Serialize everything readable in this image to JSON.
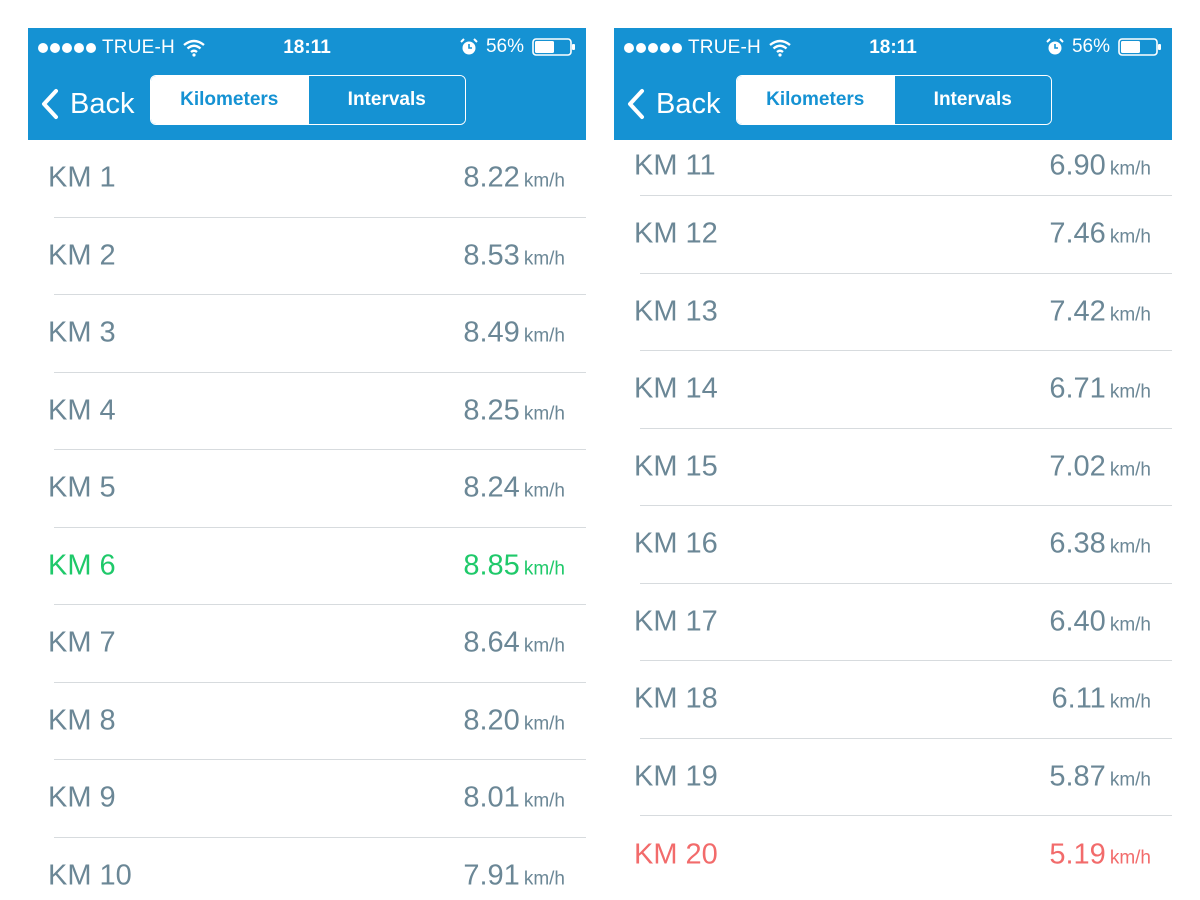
{
  "colors": {
    "nav_blue": "#1592d3",
    "text": "#6b8796",
    "fastest": "#1fc96a",
    "slowest": "#f26b6b"
  },
  "screens": [
    {
      "status": {
        "carrier": "TRUE-H",
        "time": "18:11",
        "battery": "56%"
      },
      "nav": {
        "back_label": "Back",
        "tabs": [
          "Kilometers",
          "Intervals"
        ],
        "active_tab": "Kilometers"
      },
      "rows": [
        {
          "label": "KM 1",
          "speed": "8.22",
          "unit": "km/h"
        },
        {
          "label": "KM 2",
          "speed": "8.53",
          "unit": "km/h"
        },
        {
          "label": "KM 3",
          "speed": "8.49",
          "unit": "km/h"
        },
        {
          "label": "KM 4",
          "speed": "8.25",
          "unit": "km/h"
        },
        {
          "label": "KM 5",
          "speed": "8.24",
          "unit": "km/h"
        },
        {
          "label": "KM 6",
          "speed": "8.85",
          "unit": "km/h",
          "highlight": "fastest"
        },
        {
          "label": "KM 7",
          "speed": "8.64",
          "unit": "km/h"
        },
        {
          "label": "KM 8",
          "speed": "8.20",
          "unit": "km/h"
        },
        {
          "label": "KM 9",
          "speed": "8.01",
          "unit": "km/h"
        },
        {
          "label": "KM 10",
          "speed": "7.91",
          "unit": "km/h"
        }
      ]
    },
    {
      "status": {
        "carrier": "TRUE-H",
        "time": "18:11",
        "battery": "56%"
      },
      "nav": {
        "back_label": "Back",
        "tabs": [
          "Kilometers",
          "Intervals"
        ],
        "active_tab": "Kilometers"
      },
      "rows": [
        {
          "label": "KM 11",
          "speed": "6.90",
          "unit": "km/h"
        },
        {
          "label": "KM 12",
          "speed": "7.46",
          "unit": "km/h"
        },
        {
          "label": "KM 13",
          "speed": "7.42",
          "unit": "km/h"
        },
        {
          "label": "KM 14",
          "speed": "6.71",
          "unit": "km/h"
        },
        {
          "label": "KM 15",
          "speed": "7.02",
          "unit": "km/h"
        },
        {
          "label": "KM 16",
          "speed": "6.38",
          "unit": "km/h"
        },
        {
          "label": "KM 17",
          "speed": "6.40",
          "unit": "km/h"
        },
        {
          "label": "KM 18",
          "speed": "6.11",
          "unit": "km/h"
        },
        {
          "label": "KM 19",
          "speed": "5.87",
          "unit": "km/h"
        },
        {
          "label": "KM 20",
          "speed": "5.19",
          "unit": "km/h",
          "highlight": "slowest"
        }
      ]
    }
  ]
}
